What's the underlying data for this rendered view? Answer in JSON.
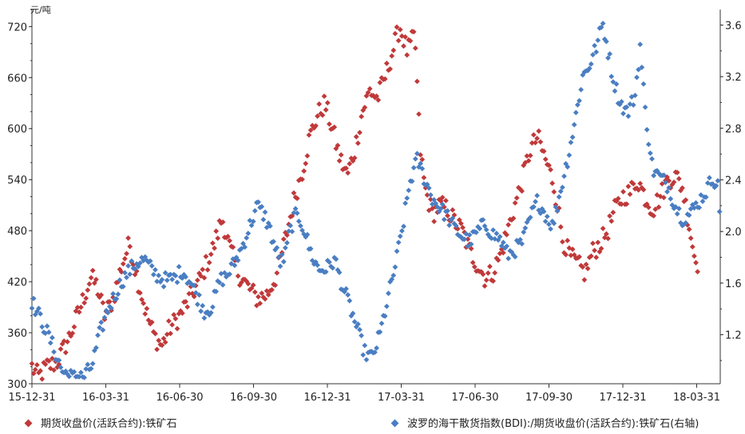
{
  "chart_data": {
    "type": "scatter",
    "title": "",
    "y_left_unit": "元/吨",
    "x_ticks": [
      "15-12-31",
      "16-03-31",
      "16-06-30",
      "16-09-30",
      "16-12-31",
      "17-03-31",
      "17-06-30",
      "17-09-30",
      "17-12-31",
      "18-03-31"
    ],
    "y_left": {
      "ticks": [
        300,
        360,
        420,
        480,
        540,
        600,
        660,
        720
      ],
      "range": [
        300,
        740
      ]
    },
    "y_right": {
      "ticks": [
        "1.2",
        "1.6",
        "2.0",
        "2.4",
        "2.8",
        "3.2",
        "3.6"
      ],
      "range": [
        0.82,
        3.72
      ]
    },
    "legend_position": "bottom",
    "series": [
      {
        "name": "期货收盘价(活跃合约):铁矿石",
        "axis": "left",
        "color": "#c0393a",
        "anchors": [
          [
            0,
            320
          ],
          [
            5,
            308
          ],
          [
            12,
            320
          ],
          [
            20,
            325
          ],
          [
            30,
            355
          ],
          [
            40,
            395
          ],
          [
            47,
            425
          ],
          [
            52,
            415
          ],
          [
            58,
            380
          ],
          [
            65,
            400
          ],
          [
            72,
            440
          ],
          [
            78,
            465
          ],
          [
            85,
            420
          ],
          [
            92,
            380
          ],
          [
            98,
            355
          ],
          [
            104,
            345
          ],
          [
            110,
            365
          ],
          [
            118,
            380
          ],
          [
            126,
            400
          ],
          [
            135,
            425
          ],
          [
            145,
            460
          ],
          [
            152,
            495
          ],
          [
            158,
            460
          ],
          [
            165,
            430
          ],
          [
            172,
            415
          ],
          [
            180,
            400
          ],
          [
            188,
            405
          ],
          [
            196,
            430
          ],
          [
            204,
            480
          ],
          [
            210,
            520
          ],
          [
            216,
            550
          ],
          [
            222,
            590
          ],
          [
            228,
            615
          ],
          [
            234,
            630
          ],
          [
            240,
            600
          ],
          [
            246,
            565
          ],
          [
            252,
            545
          ],
          [
            258,
            575
          ],
          [
            264,
            620
          ],
          [
            270,
            645
          ],
          [
            276,
            635
          ],
          [
            282,
            660
          ],
          [
            288,
            690
          ],
          [
            294,
            720
          ],
          [
            300,
            690
          ],
          [
            306,
            710
          ],
          [
            310,
            580
          ],
          [
            314,
            530
          ],
          [
            320,
            500
          ],
          [
            326,
            510
          ],
          [
            332,
            505
          ],
          [
            338,
            490
          ],
          [
            344,
            480
          ],
          [
            350,
            455
          ],
          [
            356,
            440
          ],
          [
            362,
            425
          ],
          [
            368,
            430
          ],
          [
            374,
            450
          ],
          [
            380,
            480
          ],
          [
            386,
            510
          ],
          [
            392,
            540
          ],
          [
            398,
            575
          ],
          [
            404,
            590
          ],
          [
            410,
            565
          ],
          [
            416,
            540
          ],
          [
            420,
            510
          ],
          [
            424,
            470
          ],
          [
            430,
            450
          ],
          [
            436,
            440
          ],
          [
            442,
            430
          ],
          [
            448,
            455
          ],
          [
            454,
            465
          ],
          [
            460,
            480
          ],
          [
            466,
            505
          ],
          [
            472,
            520
          ],
          [
            478,
            525
          ],
          [
            484,
            540
          ],
          [
            490,
            520
          ],
          [
            496,
            505
          ],
          [
            502,
            520
          ],
          [
            508,
            540
          ],
          [
            514,
            545
          ],
          [
            520,
            530
          ],
          [
            526,
            480
          ],
          [
            530,
            445
          ],
          [
            533,
            440
          ]
        ],
        "noise": 12
      },
      {
        "name": "波罗的海干散货指数(BDI):/期货收盘价(活跃合约):铁矿石(右轴)",
        "axis": "right",
        "color": "#4a7ec2",
        "anchors": [
          [
            0,
            1.46
          ],
          [
            6,
            1.34
          ],
          [
            12,
            1.22
          ],
          [
            18,
            1.08
          ],
          [
            24,
            0.92
          ],
          [
            30,
            0.88
          ],
          [
            36,
            0.86
          ],
          [
            42,
            0.88
          ],
          [
            48,
            0.96
          ],
          [
            54,
            1.2
          ],
          [
            60,
            1.38
          ],
          [
            66,
            1.5
          ],
          [
            72,
            1.62
          ],
          [
            78,
            1.7
          ],
          [
            84,
            1.76
          ],
          [
            90,
            1.78
          ],
          [
            96,
            1.7
          ],
          [
            102,
            1.64
          ],
          [
            108,
            1.62
          ],
          [
            114,
            1.64
          ],
          [
            120,
            1.7
          ],
          [
            126,
            1.62
          ],
          [
            132,
            1.5
          ],
          [
            138,
            1.38
          ],
          [
            144,
            1.42
          ],
          [
            150,
            1.62
          ],
          [
            156,
            1.66
          ],
          [
            162,
            1.76
          ],
          [
            168,
            1.88
          ],
          [
            174,
            2.04
          ],
          [
            180,
            2.2
          ],
          [
            186,
            2.12
          ],
          [
            190,
            2.02
          ],
          [
            194,
            1.88
          ],
          [
            198,
            1.76
          ],
          [
            202,
            1.8
          ],
          [
            206,
            2.0
          ],
          [
            210,
            2.12
          ],
          [
            214,
            2.1
          ],
          [
            218,
            2.0
          ],
          [
            222,
            1.86
          ],
          [
            226,
            1.76
          ],
          [
            230,
            1.7
          ],
          [
            236,
            1.72
          ],
          [
            242,
            1.78
          ],
          [
            248,
            1.58
          ],
          [
            254,
            1.42
          ],
          [
            260,
            1.24
          ],
          [
            266,
            1.06
          ],
          [
            272,
            1.02
          ],
          [
            278,
            1.2
          ],
          [
            284,
            1.46
          ],
          [
            290,
            1.72
          ],
          [
            296,
            2.02
          ],
          [
            302,
            2.38
          ],
          [
            308,
            2.56
          ],
          [
            314,
            2.4
          ],
          [
            320,
            2.26
          ],
          [
            326,
            2.18
          ],
          [
            332,
            2.12
          ],
          [
            338,
            2.02
          ],
          [
            344,
            1.96
          ],
          [
            350,
            1.92
          ],
          [
            356,
            2.0
          ],
          [
            362,
            2.06
          ],
          [
            368,
            1.98
          ],
          [
            374,
            1.94
          ],
          [
            380,
            1.82
          ],
          [
            386,
            1.86
          ],
          [
            392,
            1.92
          ],
          [
            398,
            2.1
          ],
          [
            404,
            2.24
          ],
          [
            410,
            2.14
          ],
          [
            416,
            2.04
          ],
          [
            422,
            2.3
          ],
          [
            428,
            2.56
          ],
          [
            434,
            2.86
          ],
          [
            440,
            3.2
          ],
          [
            446,
            3.3
          ],
          [
            452,
            3.46
          ],
          [
            456,
            3.62
          ],
          [
            460,
            3.42
          ],
          [
            464,
            3.2
          ],
          [
            470,
            3.0
          ],
          [
            476,
            2.92
          ],
          [
            482,
            3.06
          ],
          [
            486,
            3.44
          ],
          [
            490,
            2.94
          ],
          [
            496,
            2.48
          ],
          [
            502,
            2.42
          ],
          [
            508,
            2.36
          ],
          [
            514,
            2.2
          ],
          [
            520,
            2.1
          ],
          [
            526,
            2.14
          ],
          [
            532,
            2.22
          ],
          [
            538,
            2.3
          ],
          [
            544,
            2.42
          ],
          [
            548,
            2.36
          ],
          [
            550,
            2.08
          ]
        ],
        "noise": 0.06
      }
    ]
  }
}
